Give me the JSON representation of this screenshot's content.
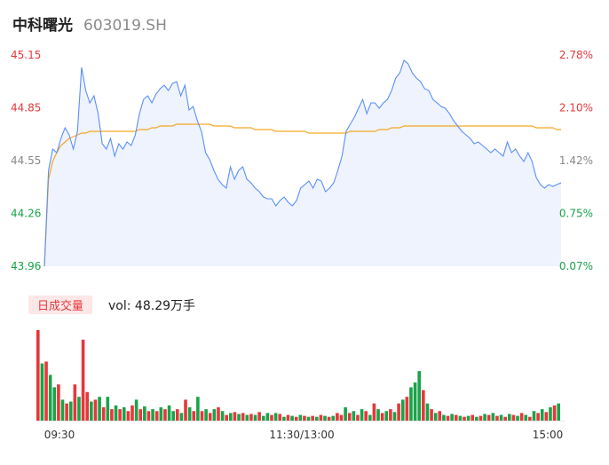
{
  "header": {
    "stock_name": "中科曙光",
    "stock_code": "603019.SH"
  },
  "legend": {
    "tag_label": "日成交量",
    "vol_text": "vol: 48.29万手"
  },
  "colors": {
    "price_line": "#5b8ff9",
    "avg_line": "#f5a623",
    "up": "#e5383b",
    "down": "#1aa34a",
    "area_fill": "#eef3fd"
  },
  "chart_data": [
    {
      "type": "line",
      "title": "",
      "y_ticks_left": [
        "45.15",
        "44.85",
        "44.55",
        "44.26",
        "43.96"
      ],
      "y_ticks_right": [
        "2.78%",
        "2.10%",
        "1.42%",
        "0.75%",
        "0.07%"
      ],
      "x_ticks": [
        "09:30",
        "11:30/13:00",
        "15:00"
      ],
      "ylim": [
        43.96,
        45.15
      ],
      "series": [
        {
          "values": [
            43.96,
            44.5,
            44.62,
            44.6,
            44.68,
            44.74,
            44.7,
            44.62,
            44.72,
            45.08,
            44.95,
            44.88,
            44.92,
            44.82,
            44.65,
            44.62,
            44.68,
            44.58,
            44.65,
            44.62,
            44.66,
            44.64,
            44.7,
            44.82,
            44.9,
            44.92,
            44.88,
            44.93,
            44.96,
            44.98,
            44.95,
            44.99,
            45.0,
            44.92,
            44.98,
            44.84,
            44.86,
            44.78,
            44.72,
            44.6,
            44.56,
            44.5,
            44.45,
            44.42,
            44.4,
            44.52,
            44.45,
            44.5,
            44.52,
            44.45,
            44.43,
            44.4,
            44.38,
            44.35,
            44.34,
            44.34,
            44.3,
            44.33,
            44.35,
            44.32,
            44.3,
            44.33,
            44.4,
            44.42,
            44.44,
            44.4,
            44.45,
            44.44,
            44.38,
            44.4,
            44.43,
            44.5,
            44.58,
            44.72,
            44.76,
            44.8,
            44.85,
            44.9,
            44.82,
            44.88,
            44.88,
            44.85,
            44.88,
            44.9,
            44.95,
            45.02,
            45.05,
            45.12,
            45.1,
            45.05,
            45.02,
            45.0,
            44.96,
            44.95,
            44.9,
            44.88,
            44.86,
            44.85,
            44.82,
            44.78,
            44.75,
            44.72,
            44.7,
            44.68,
            44.65,
            44.66,
            44.64,
            44.62,
            44.6,
            44.62,
            44.6,
            44.58,
            44.66,
            44.6,
            44.62,
            44.58,
            44.55,
            44.6,
            44.55,
            44.46,
            44.42,
            44.4,
            44.42,
            44.41,
            44.42,
            44.43
          ],
          "color": "#5b8ff9"
        },
        {
          "values": [
            43.96,
            44.45,
            44.55,
            44.6,
            44.64,
            44.66,
            44.68,
            44.69,
            44.7,
            44.71,
            44.71,
            44.72,
            44.72,
            44.72,
            44.72,
            44.72,
            44.72,
            44.72,
            44.72,
            44.72,
            44.72,
            44.72,
            44.72,
            44.73,
            44.73,
            44.73,
            44.74,
            44.74,
            44.75,
            44.75,
            44.75,
            44.75,
            44.76,
            44.76,
            44.76,
            44.76,
            44.76,
            44.76,
            44.76,
            44.76,
            44.76,
            44.75,
            44.75,
            44.75,
            44.75,
            44.75,
            44.74,
            44.74,
            44.74,
            44.74,
            44.74,
            44.73,
            44.73,
            44.73,
            44.73,
            44.73,
            44.72,
            44.72,
            44.72,
            44.72,
            44.72,
            44.72,
            44.72,
            44.72,
            44.71,
            44.71,
            44.71,
            44.71,
            44.71,
            44.71,
            44.71,
            44.71,
            44.71,
            44.71,
            44.72,
            44.72,
            44.72,
            44.72,
            44.72,
            44.72,
            44.72,
            44.73,
            44.73,
            44.73,
            44.74,
            44.74,
            44.74,
            44.75,
            44.75,
            44.75,
            44.75,
            44.75,
            44.75,
            44.75,
            44.75,
            44.75,
            44.75,
            44.75,
            44.75,
            44.75,
            44.75,
            44.75,
            44.75,
            44.75,
            44.75,
            44.75,
            44.75,
            44.75,
            44.75,
            44.75,
            44.75,
            44.75,
            44.75,
            44.75,
            44.75,
            44.75,
            44.75,
            44.75,
            44.75,
            44.74,
            44.74,
            44.74,
            44.74,
            44.74,
            44.73,
            44.73
          ],
          "color": "#f5a623"
        }
      ]
    },
    {
      "type": "bar",
      "title": "",
      "x_ticks": [
        "09:30",
        "11:30/13:00",
        "15:00"
      ],
      "values": [
        95,
        60,
        62,
        48,
        35,
        38,
        22,
        18,
        20,
        38,
        25,
        85,
        30,
        20,
        22,
        25,
        14,
        25,
        12,
        16,
        12,
        14,
        10,
        16,
        22,
        12,
        15,
        10,
        12,
        10,
        14,
        12,
        16,
        10,
        12,
        8,
        22,
        14,
        10,
        25,
        10,
        12,
        8,
        12,
        14,
        10,
        6,
        8,
        9,
        7,
        8,
        6,
        7,
        6,
        9,
        5,
        8,
        6,
        8,
        7,
        4,
        6,
        5,
        4,
        6,
        5,
        4,
        5,
        4,
        6,
        5,
        4,
        5,
        8,
        6,
        14,
        8,
        10,
        6,
        12,
        10,
        6,
        18,
        12,
        8,
        10,
        12,
        9,
        18,
        22,
        25,
        35,
        40,
        52,
        32,
        18,
        12,
        8,
        10,
        6,
        5,
        7,
        6,
        5,
        4,
        5,
        6,
        4,
        5,
        7,
        6,
        8,
        5,
        6,
        4,
        7,
        6,
        5,
        8,
        6,
        4,
        10,
        8,
        12,
        9,
        14,
        16,
        18
      ],
      "colors": [
        "up",
        "down",
        "up",
        "down",
        "down",
        "up",
        "down",
        "up",
        "down",
        "up",
        "down",
        "up",
        "up",
        "down",
        "up",
        "down",
        "up",
        "down",
        "up",
        "down",
        "up",
        "down",
        "up",
        "up",
        "down",
        "up",
        "down",
        "up",
        "down",
        "up",
        "down",
        "up",
        "down",
        "down",
        "up",
        "down",
        "up",
        "down",
        "up",
        "down",
        "up",
        "down",
        "up",
        "down",
        "up",
        "down",
        "up",
        "down",
        "up",
        "down",
        "up",
        "down",
        "up",
        "down",
        "up",
        "down",
        "down",
        "up",
        "down",
        "up",
        "down",
        "up",
        "down",
        "up",
        "down",
        "up",
        "down",
        "up",
        "down",
        "up",
        "down",
        "up",
        "down",
        "up",
        "up",
        "down",
        "up",
        "down",
        "up",
        "down",
        "up",
        "down",
        "up",
        "down",
        "up",
        "down",
        "up",
        "down",
        "up",
        "down",
        "up",
        "down",
        "down",
        "down",
        "up",
        "down",
        "up",
        "down",
        "up",
        "down",
        "up",
        "down",
        "up",
        "down",
        "up",
        "down",
        "up",
        "down",
        "up",
        "down",
        "up",
        "down",
        "up",
        "down",
        "up",
        "down",
        "up",
        "down",
        "up",
        "down",
        "up",
        "down",
        "up",
        "down",
        "up",
        "down",
        "up",
        "down"
      ]
    }
  ]
}
